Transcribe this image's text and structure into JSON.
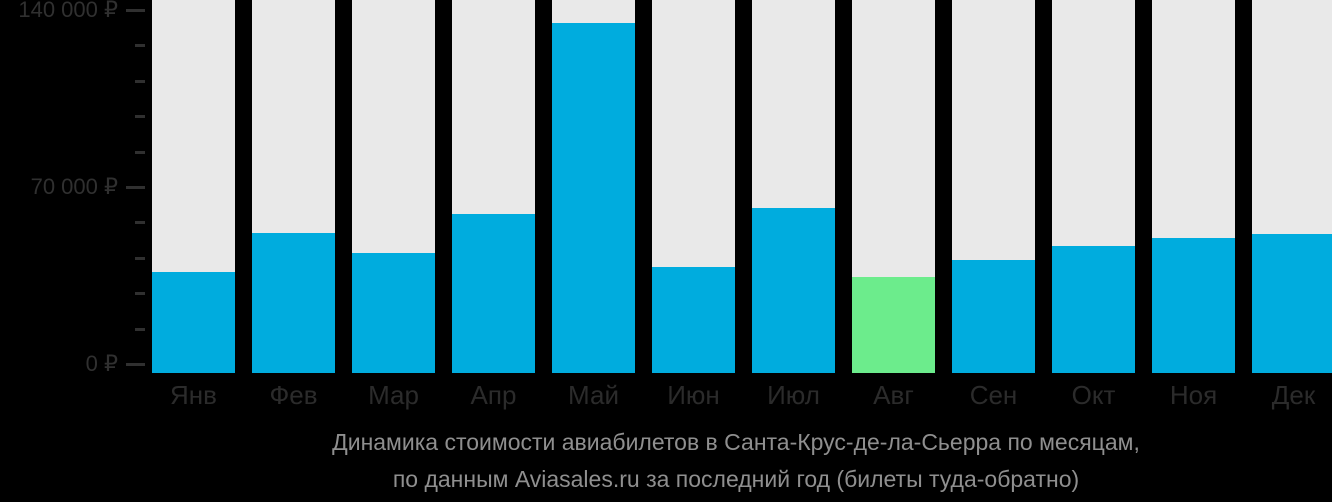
{
  "chart_data": {
    "type": "bar",
    "title": "Динамика стоимости авиабилетов в Санта-Крус-де-ла-Сьерра по месяцам,",
    "subtitle": "по данным Aviasales.ru за последний год (билеты туда-обратно)",
    "categories": [
      "Янв",
      "Фев",
      "Мар",
      "Апр",
      "Май",
      "Июн",
      "Июл",
      "Авг",
      "Сен",
      "Окт",
      "Ноя",
      "Дек"
    ],
    "values": [
      36500,
      52000,
      44000,
      59500,
      135000,
      38500,
      61500,
      34500,
      41000,
      46500,
      50000,
      51500
    ],
    "unit": "₽",
    "ylim": [
      0,
      140000
    ],
    "y_tick_labels": [
      "140 000 ₽",
      "70 000 ₽",
      "0 ₽"
    ],
    "y_major_tick_values": [
      140000,
      70000,
      0
    ],
    "minor_ticks_per_major_interval": 4,
    "highlight_index": 7,
    "highlight_category": "Авг",
    "legend": null,
    "grid": false,
    "colors": {
      "background": "#000000",
      "bar": "#00ACDE",
      "highlight": "#6CEC8C",
      "track": "#E9E9E9",
      "axis_text": "#303030",
      "month_text": "#2B2B2B",
      "title_text": "#8F8F8F"
    }
  }
}
